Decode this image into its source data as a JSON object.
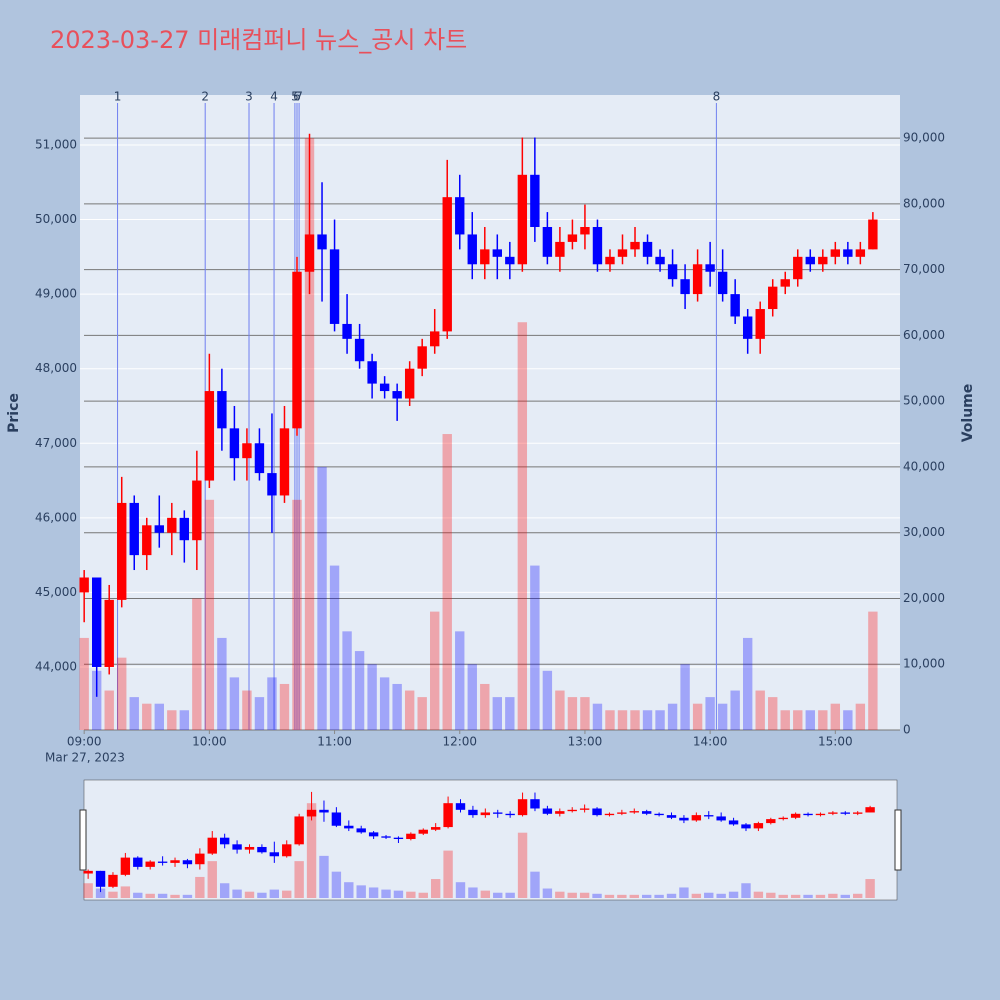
{
  "chart_data": {
    "type": "candlestick",
    "title": "2023-03-27 미래컴퍼니 뉴스_공시 차트",
    "y_title": "Price",
    "y2_title": "Volume",
    "x_date_label": "Mar 27, 2023",
    "xlim": [
      "08:58",
      "15:31"
    ],
    "xticks": [
      "09:00",
      "10:00",
      "11:00",
      "12:00",
      "13:00",
      "14:00",
      "15:00"
    ],
    "ylim": [
      43155,
      51670
    ],
    "yticks": [
      {
        "value": 44000,
        "label": "44,000"
      },
      {
        "value": 45000,
        "label": "45,000"
      },
      {
        "value": 46000,
        "label": "46,000"
      },
      {
        "value": 47000,
        "label": "47,000"
      },
      {
        "value": 48000,
        "label": "48,000"
      },
      {
        "value": 49000,
        "label": "49,000"
      },
      {
        "value": 50000,
        "label": "50,000"
      },
      {
        "value": 51000,
        "label": "51,000"
      }
    ],
    "y2lim": [
      0,
      96550
    ],
    "y2ticks": [
      0,
      {
        "value": 10000,
        "label": "10,000"
      },
      {
        "value": 20000,
        "label": "20,000"
      },
      {
        "value": 30000,
        "label": "30,000"
      },
      {
        "value": 40000,
        "label": "40,000"
      },
      {
        "value": 50000,
        "label": "50,000"
      },
      {
        "value": 60000,
        "label": "60,000"
      },
      {
        "value": 70000,
        "label": "70,000"
      },
      {
        "value": 80000,
        "label": "80,000"
      },
      {
        "value": 90000,
        "label": "90,000"
      }
    ],
    "increasing_color": "#ff0000",
    "decreasing_color": "#0000ff",
    "x": [
      "09:00",
      "09:06",
      "09:12",
      "09:18",
      "09:24",
      "09:30",
      "09:36",
      "09:42",
      "09:48",
      "09:54",
      "10:00",
      "10:06",
      "10:12",
      "10:18",
      "10:24",
      "10:30",
      "10:36",
      "10:42",
      "10:48",
      "10:54",
      "11:00",
      "11:06",
      "11:12",
      "11:18",
      "11:24",
      "11:30",
      "11:36",
      "11:42",
      "11:48",
      "11:54",
      "12:00",
      "12:06",
      "12:12",
      "12:18",
      "12:24",
      "12:30",
      "12:36",
      "12:42",
      "12:48",
      "12:54",
      "13:00",
      "13:06",
      "13:12",
      "13:18",
      "13:24",
      "13:30",
      "13:36",
      "13:42",
      "13:48",
      "13:54",
      "14:00",
      "14:06",
      "14:12",
      "14:18",
      "14:24",
      "14:30",
      "14:36",
      "14:42",
      "14:48",
      "14:54",
      "15:00",
      "15:06",
      "15:12",
      "15:18"
    ],
    "open": [
      45000,
      45200,
      44000,
      44900,
      46200,
      45500,
      45900,
      45800,
      46000,
      45700,
      46500,
      47700,
      47200,
      46800,
      47000,
      46600,
      46300,
      47200,
      49300,
      49800,
      49600,
      48600,
      48400,
      48100,
      47800,
      47700,
      47600,
      48000,
      48300,
      48500,
      50300,
      49800,
      49400,
      49600,
      49500,
      49400,
      50600,
      49900,
      49500,
      49700,
      49800,
      49900,
      49400,
      49500,
      49600,
      49700,
      49500,
      49400,
      49200,
      49000,
      49400,
      49300,
      49000,
      48700,
      48400,
      48800,
      49100,
      49200,
      49500,
      49400,
      49500,
      49600,
      49500,
      49600
    ],
    "high": [
      45300,
      45200,
      45100,
      46550,
      46300,
      46000,
      46300,
      46200,
      46100,
      46900,
      48200,
      48000,
      47500,
      47200,
      47200,
      47400,
      47500,
      49500,
      51150,
      50500,
      50000,
      49000,
      48600,
      48200,
      47900,
      47800,
      48100,
      48400,
      48800,
      50800,
      50600,
      50100,
      49900,
      49800,
      49700,
      51100,
      51100,
      50100,
      49900,
      50000,
      50200,
      50000,
      49600,
      49800,
      49900,
      49800,
      49600,
      49600,
      49400,
      49600,
      49700,
      49600,
      49200,
      48800,
      48900,
      49200,
      49300,
      49600,
      49600,
      49600,
      49700,
      49700,
      49700,
      50100
    ],
    "low": [
      44600,
      43600,
      43900,
      44800,
      45300,
      45300,
      45600,
      45500,
      45400,
      45300,
      46400,
      46900,
      46500,
      46500,
      46500,
      45800,
      46200,
      47100,
      49000,
      48900,
      48500,
      48200,
      48000,
      47600,
      47600,
      47300,
      47500,
      47900,
      48200,
      48400,
      49600,
      49200,
      49200,
      49200,
      49200,
      49300,
      49700,
      49400,
      49300,
      49600,
      49600,
      49300,
      49300,
      49400,
      49500,
      49400,
      49300,
      49100,
      48800,
      48900,
      49100,
      48900,
      48600,
      48200,
      48200,
      48700,
      49000,
      49100,
      49300,
      49300,
      49400,
      49400,
      49400,
      49600
    ],
    "close": [
      45200,
      44000,
      44900,
      46200,
      45500,
      45900,
      45800,
      46000,
      45700,
      46500,
      47700,
      47200,
      46800,
      47000,
      46600,
      46300,
      47200,
      49300,
      49800,
      49600,
      48600,
      48400,
      48100,
      47800,
      47700,
      47600,
      48000,
      48300,
      48500,
      50300,
      49800,
      49400,
      49600,
      49500,
      49400,
      50600,
      49900,
      49500,
      49700,
      49800,
      49900,
      49400,
      49500,
      49600,
      49700,
      49500,
      49400,
      49200,
      49000,
      49400,
      49300,
      49000,
      48700,
      48400,
      48800,
      49100,
      49200,
      49500,
      49400,
      49500,
      49600,
      49500,
      49600,
      50000
    ],
    "volume": [
      14000,
      9000,
      6000,
      11000,
      5000,
      4000,
      4000,
      3000,
      3000,
      20000,
      35000,
      14000,
      8000,
      6000,
      5000,
      8000,
      7000,
      35000,
      90000,
      40000,
      25000,
      15000,
      12000,
      10000,
      8000,
      7000,
      6000,
      5000,
      18000,
      45000,
      15000,
      10000,
      7000,
      5000,
      5000,
      62000,
      25000,
      9000,
      6000,
      5000,
      5000,
      4000,
      3000,
      3000,
      3000,
      3000,
      3000,
      4000,
      10000,
      4000,
      5000,
      4000,
      6000,
      14000,
      6000,
      5000,
      3000,
      3000,
      3000,
      3000,
      4000,
      3000,
      4000,
      18000
    ],
    "annotations": [
      {
        "x": "09:16",
        "label": "1"
      },
      {
        "x": "09:58",
        "label": "2"
      },
      {
        "x": "10:19",
        "label": "3"
      },
      {
        "x": "10:31",
        "label": "4"
      },
      {
        "x": "10:41",
        "label": "5"
      },
      {
        "x": "10:42",
        "label": "6"
      },
      {
        "x": "10:43",
        "label": "7"
      },
      {
        "x": "14:03",
        "label": "8"
      }
    ]
  }
}
